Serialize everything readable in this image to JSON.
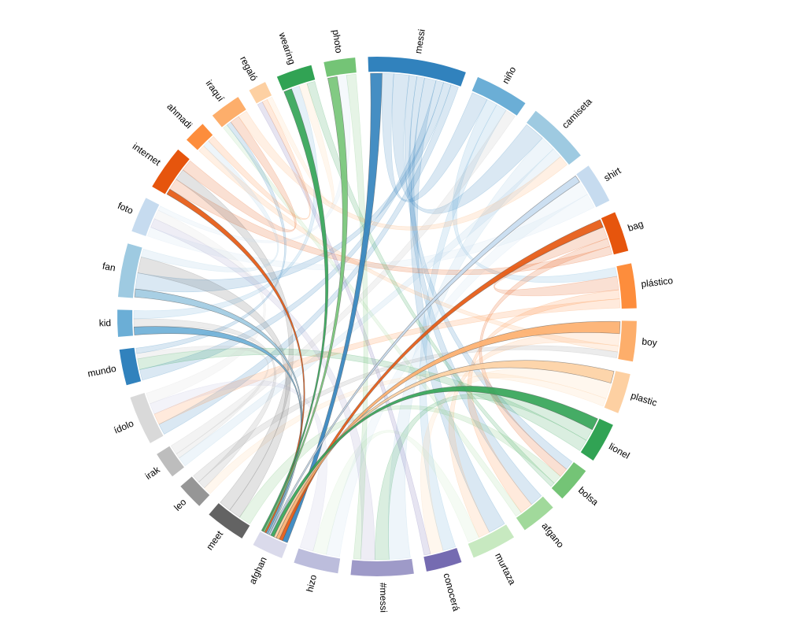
{
  "chart_data": {
    "type": "chord",
    "groups": {
      "names": [
        "messi",
        "niño",
        "camiseta",
        "shirt",
        "bag",
        "plástico",
        "boy",
        "plastic",
        "lionel",
        "bolsa",
        "afgano",
        "murtaza",
        "conocerá",
        "#messi",
        "hizo",
        "afghan",
        "meet",
        "leo",
        "irak",
        "ídolo",
        "mundo",
        "kid",
        "fan",
        "foto",
        "internet",
        "ahmadi",
        "iraquí",
        "regaló",
        "wearing",
        "photo"
      ],
      "colors": [
        "#3182bd",
        "#6baed6",
        "#9ecae1",
        "#c6dbef",
        "#e6550d",
        "#fd8d3c",
        "#fdae6b",
        "#fdd0a2",
        "#31a354",
        "#74c476",
        "#a1d99b",
        "#c7e9c0",
        "#756bb1",
        "#9e9ac8",
        "#bcbddc",
        "#dadaeb",
        "#636363",
        "#969696",
        "#bdbdbd",
        "#d9d9d9",
        "#3182bd",
        "#6baed6",
        "#9ecae1",
        "#c6dbef",
        "#e6550d",
        "#fd8d3c",
        "#fdae6b",
        "#fdd0a2",
        "#31a354",
        "#74c476"
      ],
      "values": [
        22,
        12,
        14,
        9,
        9,
        10,
        9,
        9,
        9,
        8,
        8,
        10,
        8,
        14,
        10,
        7,
        9,
        6,
        6,
        11,
        8,
        6,
        12,
        8,
        10,
        5,
        7,
        4,
        8,
        7
      ]
    },
    "focus": 15,
    "chords": [
      [
        15,
        0,
        3
      ],
      [
        15,
        4,
        2
      ],
      [
        15,
        6,
        2
      ],
      [
        15,
        7,
        1.5
      ],
      [
        15,
        8,
        2
      ],
      [
        15,
        3,
        1
      ],
      [
        15,
        22,
        1
      ],
      [
        15,
        21,
        1
      ],
      [
        15,
        24,
        1
      ],
      [
        15,
        29,
        1
      ],
      [
        15,
        28,
        1
      ],
      [
        0,
        1,
        3
      ],
      [
        0,
        2,
        4
      ],
      [
        0,
        9,
        2
      ],
      [
        0,
        10,
        2
      ],
      [
        0,
        11,
        3
      ],
      [
        0,
        20,
        2
      ],
      [
        0,
        22,
        2
      ],
      [
        0,
        19,
        2
      ],
      [
        1,
        5,
        2
      ],
      [
        1,
        12,
        2
      ],
      [
        2,
        13,
        3
      ],
      [
        2,
        18,
        2
      ],
      [
        3,
        14,
        2
      ],
      [
        3,
        23,
        2
      ],
      [
        4,
        5,
        3
      ],
      [
        4,
        9,
        2
      ],
      [
        4,
        24,
        2
      ],
      [
        5,
        10,
        2
      ],
      [
        5,
        19,
        2
      ],
      [
        6,
        11,
        2
      ],
      [
        6,
        25,
        1
      ],
      [
        7,
        12,
        2
      ],
      [
        7,
        17,
        1
      ],
      [
        8,
        13,
        2
      ],
      [
        8,
        20,
        2
      ],
      [
        9,
        16,
        2
      ],
      [
        10,
        26,
        1
      ],
      [
        11,
        14,
        2
      ],
      [
        12,
        27,
        1
      ],
      [
        13,
        23,
        2
      ],
      [
        14,
        19,
        2
      ],
      [
        16,
        22,
        2
      ],
      [
        16,
        24,
        2
      ],
      [
        17,
        21,
        1
      ],
      [
        18,
        20,
        1
      ],
      [
        19,
        23,
        2
      ],
      [
        20,
        26,
        1
      ],
      [
        21,
        28,
        1
      ],
      [
        22,
        25,
        1
      ],
      [
        23,
        29,
        1
      ],
      [
        24,
        26,
        2
      ],
      [
        25,
        27,
        1
      ],
      [
        27,
        28,
        1
      ],
      [
        28,
        9,
        1
      ],
      [
        29,
        13,
        1
      ],
      [
        26,
        2,
        2
      ],
      [
        18,
        1,
        2
      ],
      [
        17,
        6,
        1
      ]
    ]
  }
}
